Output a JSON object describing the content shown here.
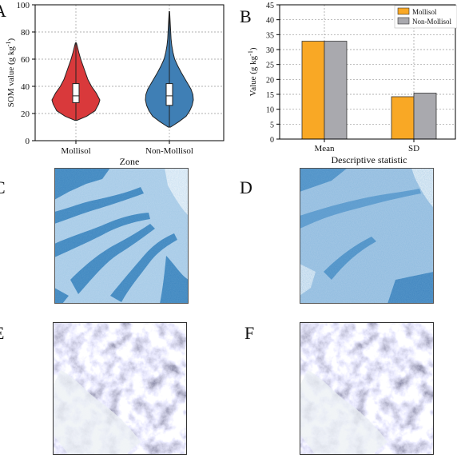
{
  "panels": {
    "A": "A",
    "B": "B",
    "C": "C",
    "D": "D",
    "E": "E",
    "F": "F"
  },
  "chart_data": [
    {
      "id": "A",
      "type": "violin",
      "xlabel": "Zone",
      "ylabel": "SOM value (g kg-1)",
      "ylabel_main": "SOM value (g kg",
      "ylabel_sup": "-1",
      "ylabel_close": ")",
      "ylim": [
        0,
        100
      ],
      "yticks": [
        0,
        20,
        40,
        60,
        80,
        100
      ],
      "grid": true,
      "categories": [
        "Mollisol",
        "Non-Mollisol"
      ],
      "colors": [
        "#d9393b",
        "#3f7fb5"
      ],
      "distributions": [
        {
          "name": "Mollisol",
          "min": 15,
          "max": 72,
          "q1": 28,
          "median": 33,
          "q3": 42,
          "density_profile": [
            [
              15,
              0.05
            ],
            [
              18,
              0.45
            ],
            [
              22,
              0.8
            ],
            [
              27,
              0.95
            ],
            [
              30,
              1.0
            ],
            [
              35,
              0.85
            ],
            [
              40,
              0.65
            ],
            [
              45,
              0.5
            ],
            [
              50,
              0.4
            ],
            [
              55,
              0.3
            ],
            [
              60,
              0.2
            ],
            [
              65,
              0.12
            ],
            [
              70,
              0.05
            ],
            [
              72,
              0.02
            ]
          ]
        },
        {
          "name": "Non-Mollisol",
          "min": 10,
          "max": 95,
          "q1": 26,
          "median": 33,
          "q3": 42,
          "density_profile": [
            [
              10,
              0.05
            ],
            [
              14,
              0.4
            ],
            [
              18,
              0.7
            ],
            [
              22,
              0.85
            ],
            [
              26,
              0.95
            ],
            [
              30,
              1.0
            ],
            [
              34,
              0.98
            ],
            [
              38,
              0.9
            ],
            [
              44,
              0.7
            ],
            [
              50,
              0.5
            ],
            [
              55,
              0.35
            ],
            [
              60,
              0.22
            ],
            [
              65,
              0.15
            ],
            [
              70,
              0.1
            ],
            [
              75,
              0.07
            ],
            [
              85,
              0.04
            ],
            [
              95,
              0.01
            ]
          ]
        }
      ]
    },
    {
      "id": "B",
      "type": "bar",
      "xlabel": "Descriptive statistic",
      "ylabel": "Value (g kg-1)",
      "ylabel_main": "Value (g kg",
      "ylabel_sup": "-1",
      "ylabel_close": ")",
      "ylim": [
        0,
        45
      ],
      "yticks": [
        0,
        5,
        10,
        15,
        20,
        25,
        30,
        35,
        40,
        45
      ],
      "grid": true,
      "legend_position": "top-right",
      "categories": [
        "Mean",
        "SD"
      ],
      "series": [
        {
          "name": "Mollisol",
          "color": "#f9a825",
          "values": [
            32.8,
            14.2
          ]
        },
        {
          "name": "Non-Mollisol",
          "color": "#a9a9ae",
          "values": [
            32.8,
            15.4
          ]
        }
      ]
    }
  ],
  "maps": [
    {
      "id": "C",
      "style": "blue-classified"
    },
    {
      "id": "D",
      "style": "blue-continuous"
    },
    {
      "id": "E",
      "style": "satellite-grayscale"
    },
    {
      "id": "F",
      "style": "satellite-grayscale"
    }
  ]
}
